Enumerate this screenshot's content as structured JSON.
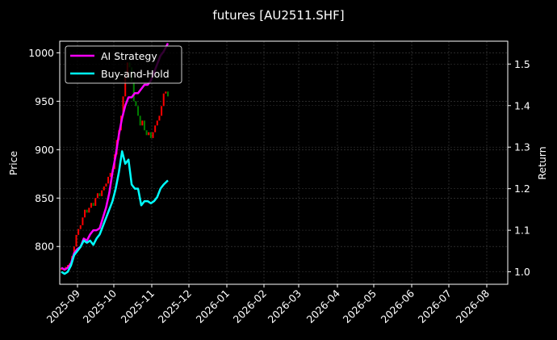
{
  "chart_data": {
    "type": "line",
    "title": "futures [AU2511.SHF]",
    "xlabel": "",
    "ylabel": "Price",
    "ylabel_right": "Return",
    "ylim": [
      761,
      1012
    ],
    "ylim_right": [
      0.97,
      1.555
    ],
    "grid": true,
    "legend_position": "upper left",
    "x_ticks": [
      "2025-09",
      "2025-10",
      "2025-11",
      "2025-12",
      "2026-01",
      "2026-02",
      "2026-03",
      "2026-04",
      "2026-05",
      "2026-06",
      "2026-07",
      "2026-08"
    ],
    "y_ticks": [
      800,
      850,
      900,
      950,
      1000
    ],
    "y_ticks_right": [
      1.0,
      1.1,
      1.2,
      1.3,
      1.4,
      1.5
    ],
    "candles": {
      "name": "Price",
      "colors": {
        "up": "#ff0000",
        "down": "#008000"
      },
      "x": [
        0.0,
        0.02,
        0.04,
        0.06,
        0.08,
        0.1,
        0.12,
        0.14,
        0.16,
        0.18,
        0.2,
        0.22,
        0.24,
        0.26,
        0.28,
        0.3,
        0.32,
        0.34,
        0.36,
        0.38,
        0.4,
        0.42,
        0.44,
        0.46,
        0.48,
        0.5,
        0.52,
        0.54,
        0.56,
        0.58,
        0.6,
        0.62,
        0.64,
        0.66,
        0.68,
        0.7,
        0.72,
        0.74,
        0.76,
        0.78,
        0.8,
        0.82,
        0.84,
        0.86,
        0.88,
        0.9,
        0.92,
        0.94,
        0.96,
        0.98,
        1.0
      ],
      "open": [
        776,
        778,
        777,
        779,
        781,
        783,
        790,
        800,
        812,
        818,
        822,
        830,
        838,
        835,
        840,
        845,
        842,
        850,
        855,
        852,
        858,
        862,
        865,
        872,
        876,
        880,
        895,
        910,
        920,
        935,
        955,
        975,
        990,
        985,
        970,
        950,
        945,
        935,
        925,
        930,
        920,
        915,
        918,
        912,
        918,
        925,
        930,
        935,
        945,
        958,
        960
      ],
      "close": [
        778,
        777,
        779,
        781,
        783,
        790,
        800,
        812,
        818,
        822,
        830,
        838,
        835,
        840,
        845,
        842,
        850,
        855,
        852,
        858,
        862,
        865,
        872,
        876,
        880,
        895,
        910,
        920,
        935,
        955,
        975,
        990,
        985,
        970,
        950,
        945,
        935,
        925,
        930,
        920,
        915,
        918,
        912,
        918,
        925,
        930,
        935,
        945,
        958,
        960,
        955
      ]
    },
    "series": [
      {
        "name": "AI Strategy",
        "color": "#ff00ff",
        "axis": "right",
        "x": [
          0.0,
          0.03,
          0.06,
          0.09,
          0.12,
          0.15,
          0.18,
          0.21,
          0.24,
          0.27,
          0.3,
          0.33,
          0.36,
          0.39,
          0.42,
          0.45,
          0.48,
          0.51,
          0.54,
          0.57,
          0.6,
          0.63,
          0.66,
          0.69,
          0.72,
          0.75,
          0.78,
          0.81,
          0.84,
          0.87,
          0.9,
          0.93,
          0.96,
          1.0
        ],
        "values": [
          1.01,
          1.005,
          1.01,
          1.02,
          1.045,
          1.055,
          1.06,
          1.08,
          1.075,
          1.09,
          1.1,
          1.1,
          1.105,
          1.13,
          1.155,
          1.19,
          1.24,
          1.28,
          1.33,
          1.37,
          1.4,
          1.42,
          1.42,
          1.43,
          1.43,
          1.44,
          1.45,
          1.45,
          1.46,
          1.48,
          1.5,
          1.52,
          1.53,
          1.55
        ]
      },
      {
        "name": "Buy-and-Hold",
        "color": "#00ffff",
        "axis": "right",
        "x": [
          0.0,
          0.03,
          0.06,
          0.09,
          0.12,
          0.15,
          0.18,
          0.21,
          0.24,
          0.27,
          0.3,
          0.33,
          0.36,
          0.39,
          0.42,
          0.45,
          0.48,
          0.51,
          0.54,
          0.57,
          0.6,
          0.63,
          0.66,
          0.69,
          0.72,
          0.75,
          0.78,
          0.81,
          0.84,
          0.87,
          0.9,
          0.93,
          0.96,
          1.0
        ],
        "values": [
          1.0,
          0.995,
          1.0,
          1.015,
          1.04,
          1.05,
          1.06,
          1.075,
          1.07,
          1.075,
          1.065,
          1.08,
          1.09,
          1.11,
          1.13,
          1.15,
          1.17,
          1.2,
          1.24,
          1.29,
          1.26,
          1.27,
          1.21,
          1.2,
          1.2,
          1.16,
          1.17,
          1.17,
          1.165,
          1.17,
          1.18,
          1.2,
          1.21,
          1.22
        ]
      }
    ]
  },
  "legend": {
    "items": [
      {
        "label": "AI Strategy",
        "color": "#ff00ff"
      },
      {
        "label": "Buy-and-Hold",
        "color": "#00ffff"
      }
    ]
  }
}
